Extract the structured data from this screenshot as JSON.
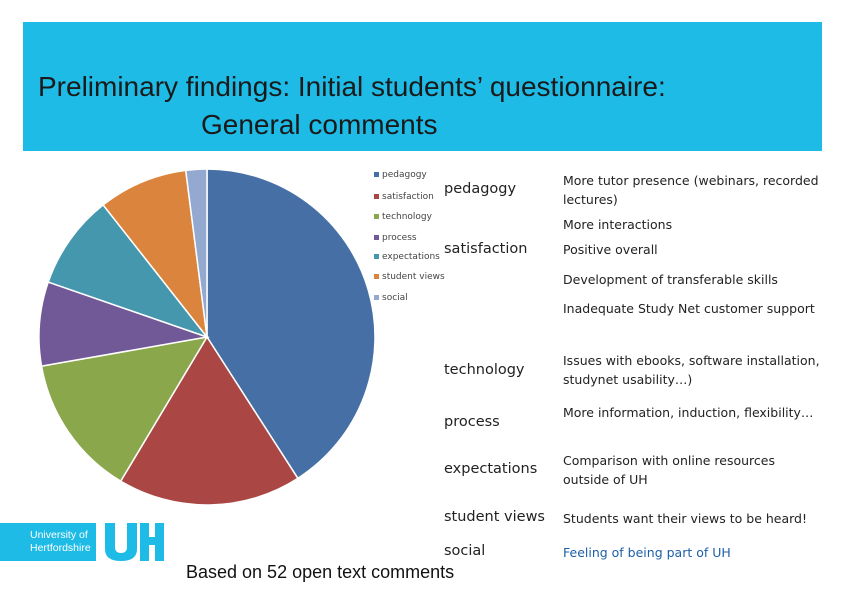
{
  "header": {
    "title_line1": "Preliminary findings: Initial students’ questionnaire:",
    "title_line2": "General comments"
  },
  "chart_data": {
    "type": "pie",
    "categories": [
      "pedagogy",
      "satisfaction",
      "technology",
      "process",
      "expectations",
      "student views",
      "social"
    ],
    "values": [
      40.5,
      17.5,
      13.5,
      8.0,
      9.0,
      8.5,
      2.0
    ],
    "colors": [
      "#4670a5",
      "#aa4744",
      "#8aa84b",
      "#715896",
      "#4497ad",
      "#db843d",
      "#93a9cf"
    ],
    "legend_position": "right"
  },
  "rows": [
    {
      "category": "pedagogy",
      "comments": [
        "More tutor presence (webinars, recorded lectures)",
        "More interactions"
      ]
    },
    {
      "category": "satisfaction",
      "comments": [
        "Positive overall",
        "Development of transferable skills",
        "Inadequate Study Net customer support"
      ]
    },
    {
      "category": "technology",
      "comments": [
        "Issues with ebooks, software installation, studynet usability…)"
      ]
    },
    {
      "category": "process",
      "comments": [
        "More information, induction, flexibility…"
      ]
    },
    {
      "category": "expectations",
      "comments": [
        "Comparison with online resources outside of UH"
      ]
    },
    {
      "category": "student views",
      "comments": [
        "Students want their views to be heard!"
      ]
    },
    {
      "category": "social",
      "comments": [
        "Feeling of being part of UH"
      ]
    }
  ],
  "footer": {
    "note": "Based on 52 open text comments"
  },
  "logo": {
    "line1": "University of",
    "line2": "Hertfordshire",
    "mark": "UH"
  }
}
